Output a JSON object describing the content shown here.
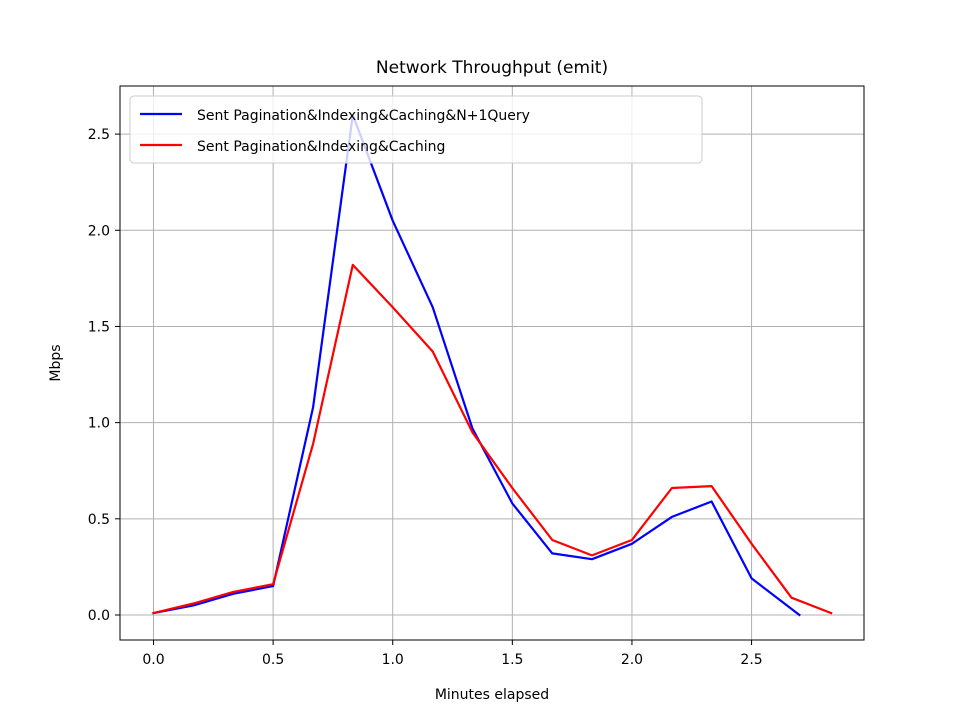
{
  "chart_data": {
    "type": "line",
    "title": "Network Throughput (emit)",
    "xlabel": "Minutes elapsed",
    "ylabel": "Mbps",
    "xlim": [
      -0.14,
      2.97
    ],
    "ylim": [
      -0.13,
      2.75
    ],
    "xticks": [
      0.0,
      0.5,
      1.0,
      1.5,
      2.0,
      2.5
    ],
    "xtick_labels": [
      "0.0",
      "0.5",
      "1.0",
      "1.5",
      "2.0",
      "2.5"
    ],
    "yticks": [
      0.0,
      0.5,
      1.0,
      1.5,
      2.0,
      2.5
    ],
    "ytick_labels": [
      "0.0",
      "0.5",
      "1.0",
      "1.5",
      "2.0",
      "2.5"
    ],
    "grid": true,
    "legend": "upper-left",
    "series": [
      {
        "name": "Sent Pagination&Indexing&Caching&N+1Query",
        "color": "#0000ff",
        "x": [
          0.0,
          0.167,
          0.333,
          0.5,
          0.667,
          0.833,
          1.0,
          1.167,
          1.333,
          1.5,
          1.667,
          1.833,
          2.0,
          2.167,
          2.333,
          2.5,
          2.7
        ],
        "y": [
          0.01,
          0.05,
          0.11,
          0.15,
          1.08,
          2.6,
          2.05,
          1.6,
          0.97,
          0.58,
          0.32,
          0.29,
          0.37,
          0.51,
          0.59,
          0.19,
          0.0
        ]
      },
      {
        "name": "Sent Pagination&Indexing&Caching",
        "color": "#ff0000",
        "x": [
          0.0,
          0.167,
          0.333,
          0.5,
          0.667,
          0.833,
          1.0,
          1.167,
          1.333,
          1.5,
          1.667,
          1.833,
          2.0,
          2.167,
          2.333,
          2.5,
          2.667,
          2.833
        ],
        "y": [
          0.01,
          0.06,
          0.12,
          0.16,
          0.89,
          1.82,
          1.6,
          1.37,
          0.95,
          0.66,
          0.39,
          0.31,
          0.39,
          0.66,
          0.67,
          0.37,
          0.09,
          0.01
        ]
      }
    ]
  }
}
